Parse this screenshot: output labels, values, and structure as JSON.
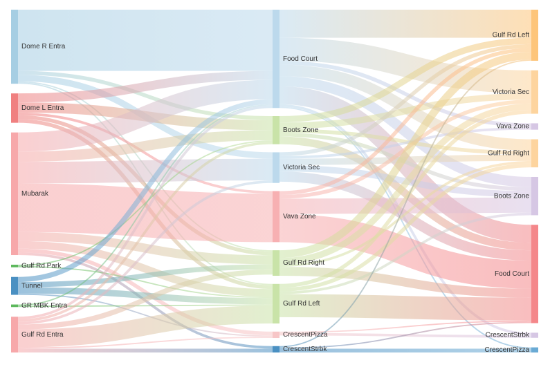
{
  "chart_data": {
    "type": "sankey",
    "title": "",
    "nodes": [
      {
        "id": "dome_r",
        "label": "Dome R Entra",
        "column": 0,
        "color": "#a6cee3"
      },
      {
        "id": "dome_l",
        "label": "Dome L Entra",
        "column": 0,
        "color": "#f08080"
      },
      {
        "id": "mubarak",
        "label": "Mubarak",
        "column": 0,
        "color": "#f7a8aa"
      },
      {
        "id": "gulf_park",
        "label": "Gulf Rd Park",
        "column": 0,
        "color": "#5cb85c"
      },
      {
        "id": "tunnel",
        "label": "Tunnel",
        "column": 0,
        "color": "#4a90c2"
      },
      {
        "id": "gr_mbk",
        "label": "GR MBK Entra",
        "column": 0,
        "color": "#5cb85c"
      },
      {
        "id": "gulf_entra",
        "label": "Gulf Rd Entra",
        "column": 0,
        "color": "#f7a8aa"
      },
      {
        "id": "m_food",
        "label": "Food Court",
        "column": 1,
        "color": "#bcd9ec"
      },
      {
        "id": "m_boots",
        "label": "Boots Zone",
        "column": 1,
        "color": "#c9e3a8"
      },
      {
        "id": "m_victoria",
        "label": "Victoria Sec",
        "column": 1,
        "color": "#bcd9ec"
      },
      {
        "id": "m_vava",
        "label": "Vava Zone",
        "column": 1,
        "color": "#f7b0b2"
      },
      {
        "id": "m_gulf_right",
        "label": "Gulf Rd Right",
        "column": 1,
        "color": "#c9e3a8"
      },
      {
        "id": "m_gulf_left",
        "label": "Gulf Rd Left",
        "column": 1,
        "color": "#c9e3a8"
      },
      {
        "id": "m_crescent_pizza",
        "label": "CrescentPizza",
        "column": 1,
        "color": "#f7c6c7"
      },
      {
        "id": "m_crescent_strbk",
        "label": "CrescentStrbk",
        "column": 1,
        "color": "#4a90c2"
      },
      {
        "id": "r_gulf_left",
        "label": "Gulf Rd Left",
        "column": 2,
        "color": "#fdc57a"
      },
      {
        "id": "r_victoria",
        "label": "Victoria Sec",
        "column": 2,
        "color": "#fdd49e"
      },
      {
        "id": "r_vava",
        "label": "Vava Zone",
        "column": 2,
        "color": "#d6c7e4"
      },
      {
        "id": "r_gulf_right",
        "label": "Gulf Rd Right",
        "column": 2,
        "color": "#fdd49e"
      },
      {
        "id": "r_boots",
        "label": "Boots Zone",
        "column": 2,
        "color": "#d6c7e4"
      },
      {
        "id": "r_food",
        "label": "Food Court",
        "column": 2,
        "color": "#f4878a"
      },
      {
        "id": "r_crescent_strbk",
        "label": "CrescentStrbk",
        "column": 2,
        "color": "#d6c7e4"
      },
      {
        "id": "r_crescent_pizza",
        "label": "CrescentPizza",
        "column": 2,
        "color": "#6aaad4"
      }
    ],
    "links": [
      {
        "source": "dome_r",
        "target": "m_food",
        "value": 48
      },
      {
        "source": "dome_r",
        "target": "m_victoria",
        "value": 5
      },
      {
        "source": "dome_r",
        "target": "m_boots",
        "value": 3
      },
      {
        "source": "dome_r",
        "target": "m_gulf_right",
        "value": 1
      },
      {
        "source": "dome_r",
        "target": "m_gulf_left",
        "value": 1
      },
      {
        "source": "dome_l",
        "target": "m_boots",
        "value": 8
      },
      {
        "source": "dome_l",
        "target": "m_food",
        "value": 7
      },
      {
        "source": "dome_l",
        "target": "m_gulf_left",
        "value": 3
      },
      {
        "source": "dome_l",
        "target": "m_gulf_right",
        "value": 3
      },
      {
        "source": "dome_l",
        "target": "m_vava",
        "value": 2
      },
      {
        "source": "mubarak",
        "target": "m_food",
        "value": 15
      },
      {
        "source": "mubarak",
        "target": "m_boots",
        "value": 8
      },
      {
        "source": "mubarak",
        "target": "m_victoria",
        "value": 17
      },
      {
        "source": "mubarak",
        "target": "m_vava",
        "value": 38
      },
      {
        "source": "mubarak",
        "target": "m_gulf_right",
        "value": 7
      },
      {
        "source": "mubarak",
        "target": "m_gulf_left",
        "value": 6
      },
      {
        "source": "mubarak",
        "target": "m_crescent_pizza",
        "value": 3
      },
      {
        "source": "mubarak",
        "target": "m_crescent_strbk",
        "value": 2
      },
      {
        "source": "gulf_park",
        "target": "m_boots",
        "value": 1
      },
      {
        "source": "gulf_park",
        "target": "m_gulf_left",
        "value": 1
      },
      {
        "source": "tunnel",
        "target": "m_food",
        "value": 4
      },
      {
        "source": "tunnel",
        "target": "m_gulf_right",
        "value": 4
      },
      {
        "source": "tunnel",
        "target": "m_gulf_left",
        "value": 5
      },
      {
        "source": "tunnel",
        "target": "m_crescent_pizza",
        "value": 1
      },
      {
        "source": "gr_mbk",
        "target": "m_gulf_left",
        "value": 1
      },
      {
        "source": "gr_mbk",
        "target": "m_food",
        "value": 1
      },
      {
        "source": "gulf_entra",
        "target": "m_food",
        "value": 2
      },
      {
        "source": "gulf_entra",
        "target": "m_boots",
        "value": 2
      },
      {
        "source": "gulf_entra",
        "target": "m_victoria",
        "value": 2
      },
      {
        "source": "gulf_entra",
        "target": "m_gulf_right",
        "value": 4
      },
      {
        "source": "gulf_entra",
        "target": "m_gulf_left",
        "value": 14
      },
      {
        "source": "gulf_entra",
        "target": "m_crescent_pizza",
        "value": 1
      },
      {
        "source": "gulf_entra",
        "target": "m_crescent_strbk",
        "value": 3
      },
      {
        "source": "m_food",
        "target": "r_gulf_left",
        "value": 22
      },
      {
        "source": "m_food",
        "target": "r_victoria",
        "value": 18
      },
      {
        "source": "m_food",
        "target": "r_vava",
        "value": 3
      },
      {
        "source": "m_food",
        "target": "r_gulf_right",
        "value": 9
      },
      {
        "source": "m_food",
        "target": "r_boots",
        "value": 8
      },
      {
        "source": "m_food",
        "target": "r_food",
        "value": 14
      },
      {
        "source": "m_food",
        "target": "r_crescent_strbk",
        "value": 2
      },
      {
        "source": "m_food",
        "target": "r_crescent_pizza",
        "value": 1
      },
      {
        "source": "m_boots",
        "target": "r_gulf_left",
        "value": 5
      },
      {
        "source": "m_boots",
        "target": "r_victoria",
        "value": 5
      },
      {
        "source": "m_boots",
        "target": "r_gulf_right",
        "value": 3
      },
      {
        "source": "m_boots",
        "target": "r_boots",
        "value": 3
      },
      {
        "source": "m_boots",
        "target": "r_food",
        "value": 6
      },
      {
        "source": "m_victoria",
        "target": "r_gulf_left",
        "value": 3
      },
      {
        "source": "m_victoria",
        "target": "r_vava",
        "value": 2
      },
      {
        "source": "m_victoria",
        "target": "r_gulf_right",
        "value": 5
      },
      {
        "source": "m_victoria",
        "target": "r_boots",
        "value": 5
      },
      {
        "source": "m_victoria",
        "target": "r_food",
        "value": 8
      },
      {
        "source": "m_vava",
        "target": "r_gulf_left",
        "value": 3
      },
      {
        "source": "m_vava",
        "target": "r_victoria",
        "value": 3
      },
      {
        "source": "m_vava",
        "target": "r_boots",
        "value": 12
      },
      {
        "source": "m_vava",
        "target": "r_food",
        "value": 22
      },
      {
        "source": "m_gulf_right",
        "target": "r_gulf_left",
        "value": 6
      },
      {
        "source": "m_gulf_right",
        "target": "r_victoria",
        "value": 5
      },
      {
        "source": "m_gulf_right",
        "target": "r_gulf_right",
        "value": 2
      },
      {
        "source": "m_gulf_right",
        "target": "r_food",
        "value": 7
      },
      {
        "source": "m_gulf_left",
        "target": "r_victoria",
        "value": 3
      },
      {
        "source": "m_gulf_left",
        "target": "r_gulf_right",
        "value": 3
      },
      {
        "source": "m_gulf_left",
        "target": "r_boots",
        "value": 2
      },
      {
        "source": "m_gulf_left",
        "target": "r_food",
        "value": 18
      },
      {
        "source": "m_crescent_pizza",
        "target": "r_crescent_strbk",
        "value": 2
      },
      {
        "source": "m_crescent_pizza",
        "target": "r_food",
        "value": 1
      },
      {
        "source": "m_crescent_strbk",
        "target": "r_gulf_left",
        "value": 1
      },
      {
        "source": "m_crescent_strbk",
        "target": "r_food",
        "value": 1
      },
      {
        "source": "m_crescent_strbk",
        "target": "r_crescent_pizza",
        "value": 3
      }
    ]
  }
}
